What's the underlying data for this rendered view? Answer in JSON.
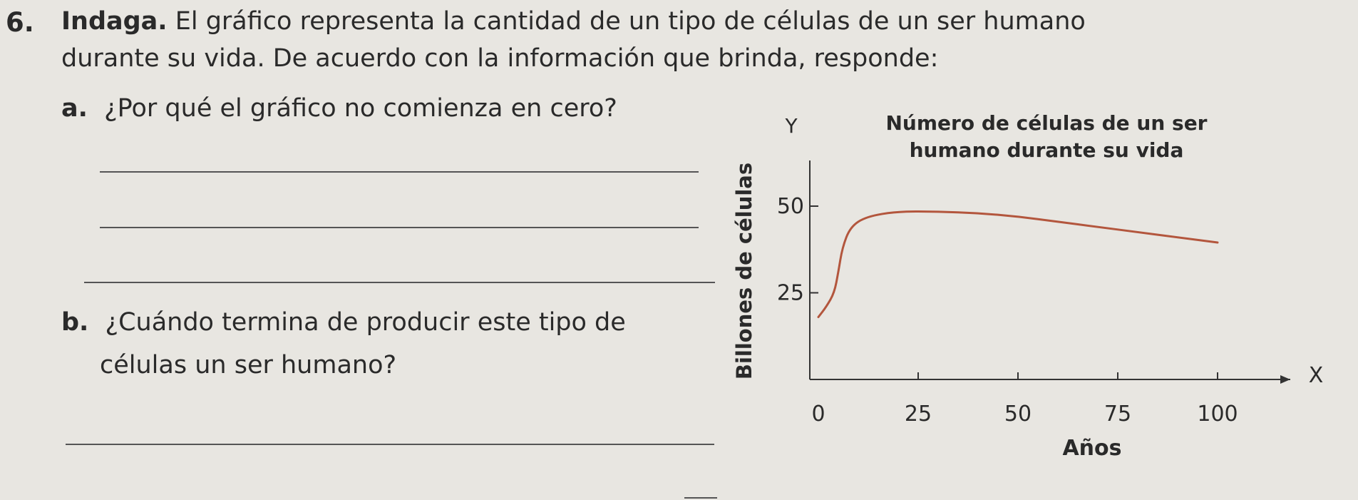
{
  "question": {
    "number": "6.",
    "keyword": "Indaga.",
    "intro_line1": "El gráfico representa la cantidad de un tipo de células de un ser humano",
    "intro_line2": "durante su vida. De acuerdo con la información que brinda, responde:"
  },
  "items": [
    {
      "letter": "a.",
      "text": "¿Por qué el gráfico no comienza en cero?"
    },
    {
      "letter": "b.",
      "text_line1": "¿Cuándo termina de producir este tipo de",
      "text_line2": "células un ser humano?"
    }
  ],
  "chart_data": {
    "type": "line",
    "title_line1": "Número de células de un ser",
    "title_line2": "humano durante su vida",
    "xlabel": "Años",
    "ylabel": "Billones de células",
    "x_axis_letter": "X",
    "y_axis_letter": "Y",
    "xlim": [
      0,
      100
    ],
    "ylim": [
      0,
      50
    ],
    "x_ticks": [
      0,
      25,
      50,
      75,
      100
    ],
    "y_ticks": [
      25,
      50
    ],
    "grid": false,
    "series": [
      {
        "color": "#b3563d",
        "points": [
          [
            0,
            18
          ],
          [
            2,
            21
          ],
          [
            4,
            25
          ],
          [
            5,
            31
          ],
          [
            6,
            38
          ],
          [
            8,
            44
          ],
          [
            12,
            47
          ],
          [
            20,
            48.5
          ],
          [
            30,
            48.4
          ],
          [
            40,
            48
          ],
          [
            50,
            47
          ],
          [
            60,
            45.5
          ],
          [
            70,
            44
          ],
          [
            80,
            42.5
          ],
          [
            90,
            41
          ],
          [
            100,
            39.5
          ]
        ]
      }
    ]
  }
}
